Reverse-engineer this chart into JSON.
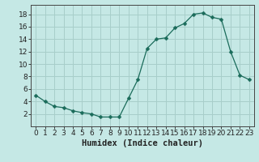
{
  "x": [
    0,
    1,
    2,
    3,
    4,
    5,
    6,
    7,
    8,
    9,
    10,
    11,
    12,
    13,
    14,
    15,
    16,
    17,
    18,
    19,
    20,
    21,
    22,
    23
  ],
  "y": [
    5.0,
    4.0,
    3.2,
    3.0,
    2.5,
    2.2,
    2.0,
    1.5,
    1.5,
    1.5,
    4.5,
    7.5,
    12.5,
    14.0,
    14.2,
    15.8,
    16.5,
    18.0,
    18.2,
    17.5,
    17.2,
    12.0,
    8.2,
    7.5
  ],
  "line_color": "#1a6b5a",
  "marker": "D",
  "marker_size": 2.5,
  "bg_color": "#c5e8e5",
  "grid_color": "#a8ceca",
  "xlabel": "Humidex (Indice chaleur)",
  "xlabel_fontsize": 7.5,
  "tick_fontsize": 6.5,
  "ylim": [
    0,
    19.5
  ],
  "xlim": [
    -0.5,
    23.5
  ],
  "yticks": [
    2,
    4,
    6,
    8,
    10,
    12,
    14,
    16,
    18
  ],
  "xticks": [
    0,
    1,
    2,
    3,
    4,
    5,
    6,
    7,
    8,
    9,
    10,
    11,
    12,
    13,
    14,
    15,
    16,
    17,
    18,
    19,
    20,
    21,
    22,
    23
  ]
}
